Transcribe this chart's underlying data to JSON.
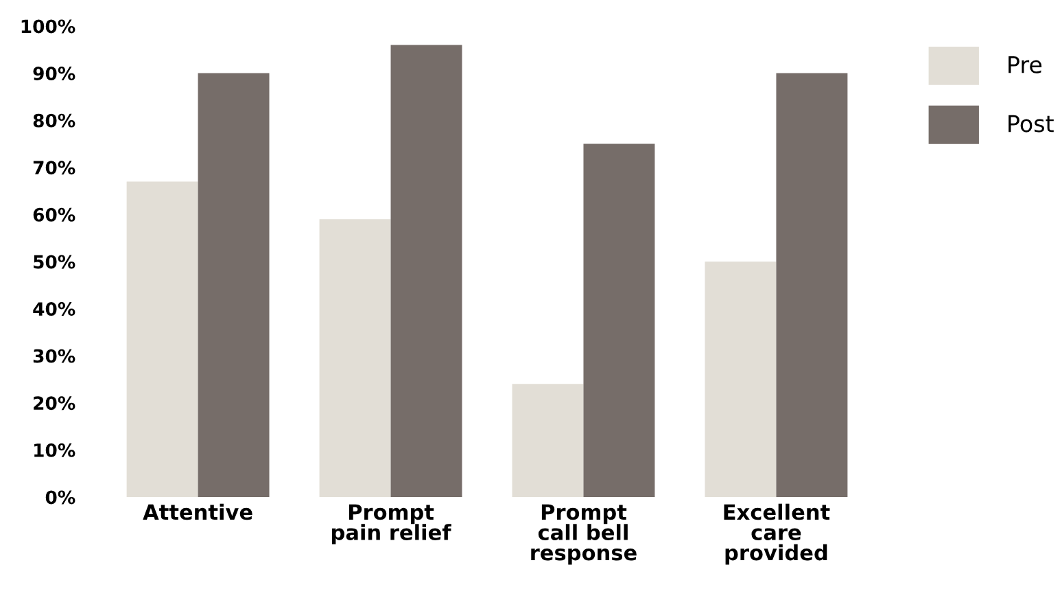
{
  "chart_data": {
    "type": "bar",
    "categories": [
      "Attentive",
      "Prompt\npain relief",
      "Prompt\ncall bell\nresponse",
      "Excellent\ncare\nprovided"
    ],
    "series": [
      {
        "name": "Pre",
        "color": "#e2ded6",
        "values": [
          67,
          59,
          24,
          50
        ]
      },
      {
        "name": "Post",
        "color": "#766d69",
        "values": [
          90,
          96,
          75,
          90
        ]
      }
    ],
    "ylim": [
      0,
      100
    ],
    "yticks": [
      {
        "value": 0,
        "label": "0%"
      },
      {
        "value": 10,
        "label": "10%"
      },
      {
        "value": 20,
        "label": "20%"
      },
      {
        "value": 30,
        "label": "30%"
      },
      {
        "value": 40,
        "label": "40%"
      },
      {
        "value": 50,
        "label": "50%"
      },
      {
        "value": 60,
        "label": "60%"
      },
      {
        "value": 70,
        "label": "70%"
      },
      {
        "value": 80,
        "label": "80%"
      },
      {
        "value": 90,
        "label": "90%"
      },
      {
        "value": 100,
        "label": "100%"
      }
    ],
    "grid": false,
    "legend": "top right"
  }
}
